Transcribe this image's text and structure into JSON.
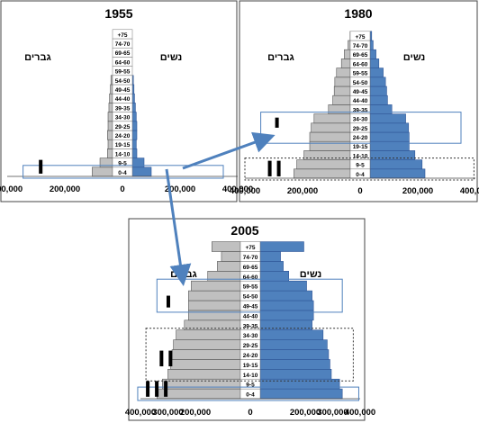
{
  "labels": {
    "men": "גברים",
    "women": "נשים"
  },
  "colors": {
    "men": "#c0c0c0",
    "women": "#4f81bd",
    "men_stroke": "#555555",
    "women_stroke": "#2f5597",
    "highlight_box": "#4f81bd",
    "arrow": "#4f81bd"
  },
  "chart_data": [
    {
      "type": "bar",
      "title": "1955",
      "orientation": "population-pyramid",
      "categories": [
        "0-4",
        "9-5",
        "14-10",
        "19-15",
        "24-20",
        "29-25",
        "34-30",
        "39-35",
        "44-40",
        "49-45",
        "54-50",
        "59-55",
        "64-60",
        "69-65",
        "74-70",
        "+75"
      ],
      "series": [
        {
          "name": "גברים",
          "values": [
            105000,
            78000,
            52000,
            50000,
            52000,
            50000,
            50000,
            47000,
            45000,
            42000,
            40000,
            33000,
            27000,
            20000,
            14000,
            8000
          ]
        },
        {
          "name": "נשים",
          "values": [
            100000,
            75000,
            50000,
            48000,
            50000,
            50000,
            48000,
            45000,
            42000,
            40000,
            38000,
            32000,
            27000,
            20000,
            14000,
            8000
          ]
        }
      ],
      "xlim": [
        -400000,
        400000
      ],
      "x_ticks": [
        "400,000",
        "200,000",
        "0",
        "200,000",
        "400,000"
      ]
    },
    {
      "type": "bar",
      "title": "1980",
      "orientation": "population-pyramid",
      "categories": [
        "0-4",
        "9-5",
        "14-10",
        "19-15",
        "24-20",
        "29-25",
        "34-30",
        "39-35",
        "44-40",
        "49-45",
        "54-50",
        "59-55",
        "64-60",
        "69-65",
        "74-70",
        "+75"
      ],
      "series": [
        {
          "name": "גברים",
          "values": [
            230000,
            220000,
            195000,
            175000,
            175000,
            170000,
            160000,
            110000,
            95000,
            90000,
            88000,
            82000,
            65000,
            55000,
            42000,
            35000
          ]
        },
        {
          "name": "נשים",
          "values": [
            225000,
            215000,
            190000,
            170000,
            170000,
            168000,
            158000,
            110000,
            95000,
            92000,
            88000,
            80000,
            65000,
            55000,
            45000,
            40000
          ]
        }
      ],
      "xlim": [
        -400000,
        400000
      ],
      "x_ticks": [
        "400,000",
        "200,000",
        "0",
        "200,000",
        "400,000"
      ]
    },
    {
      "type": "bar",
      "title": "2005",
      "orientation": "population-pyramid",
      "categories": [
        "0-4",
        "9-5",
        "14-10",
        "19-15",
        "24-20",
        "29-25",
        "34-30",
        "39-35",
        "44-40",
        "49-45",
        "54-50",
        "59-55",
        "64-60",
        "69-65",
        "74-70",
        "+75"
      ],
      "series": [
        {
          "name": "גברים",
          "values": [
            340000,
            320000,
            300000,
            290000,
            285000,
            280000,
            270000,
            240000,
            225000,
            225000,
            225000,
            215000,
            155000,
            120000,
            105000,
            140000
          ]
        },
        {
          "name": "נשים",
          "values": [
            335000,
            325000,
            295000,
            290000,
            285000,
            280000,
            265000,
            225000,
            230000,
            230000,
            225000,
            205000,
            140000,
            120000,
            110000,
            195000
          ]
        }
      ],
      "xlim": [
        -400000,
        400000
      ],
      "x_ticks": [
        "400,000",
        "300,000",
        "200,000",
        "0",
        "200,000",
        "300,000",
        "400,000"
      ]
    }
  ]
}
